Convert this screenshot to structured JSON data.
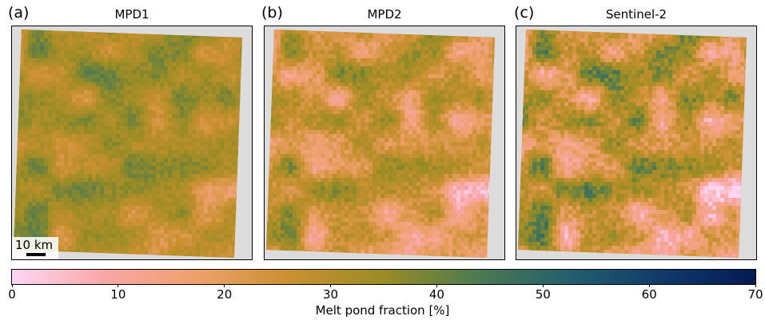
{
  "panels": [
    {
      "letter": "(a)",
      "title": "MPD1",
      "mean_fraction": 32,
      "variability": 7
    },
    {
      "letter": "(b)",
      "title": "MPD2",
      "mean_fraction": 25,
      "variability": 10
    },
    {
      "letter": "(c)",
      "title": "Sentinel-2",
      "mean_fraction": 26,
      "variability": 13
    }
  ],
  "scalebar": {
    "label": "10 km"
  },
  "chart_data": {
    "type": "heatmap",
    "colorbar": {
      "label": "Melt pond fraction [%]",
      "range": [
        0,
        70
      ],
      "ticks": [
        "0",
        "10",
        "20",
        "30",
        "40",
        "50",
        "60",
        "70"
      ],
      "colors": [
        "#fdd6f4",
        "#f9a6a6",
        "#eea06a",
        "#c9902f",
        "#9a8c24",
        "#4d7a50",
        "#235f6e",
        "#0f3a6a",
        "#061a54"
      ]
    }
  }
}
